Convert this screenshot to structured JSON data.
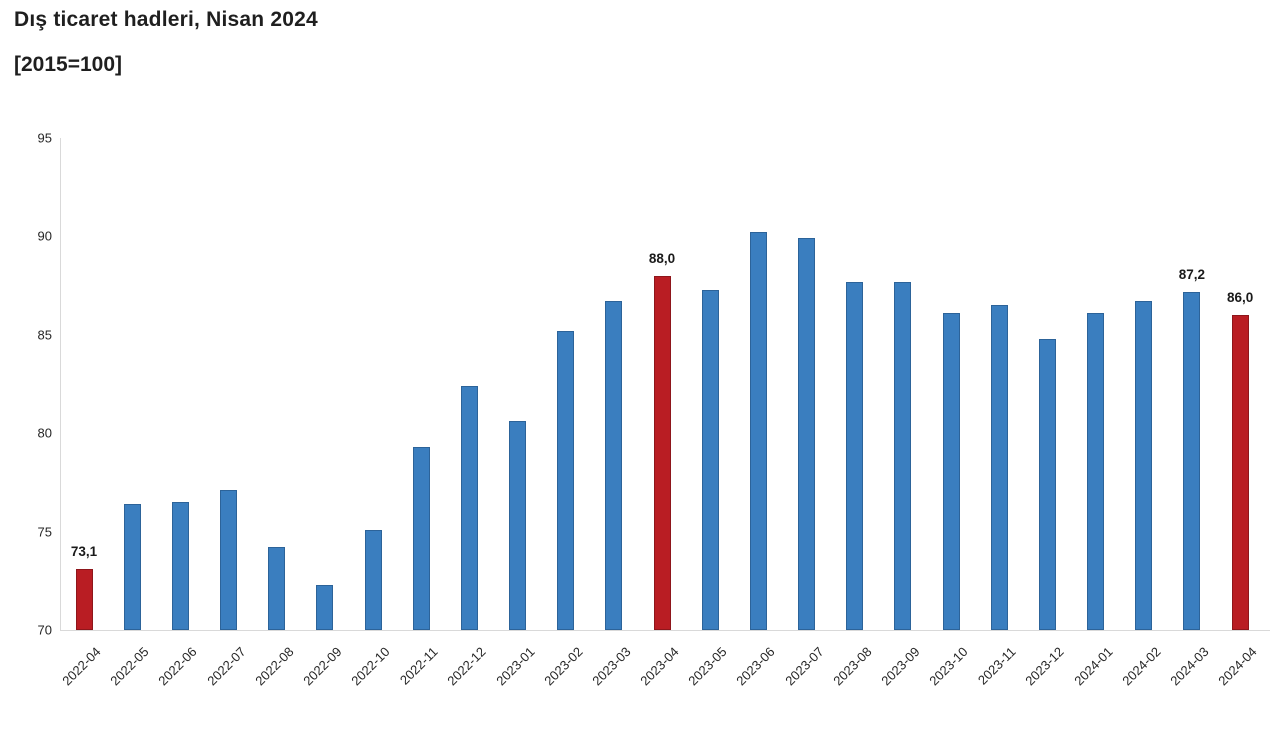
{
  "header": {
    "title": "Dış ticaret hadleri, Nisan 2024",
    "subtitle": "[2015=100]"
  },
  "colors": {
    "bar_default": "#3a7ebf",
    "bar_highlight": "#b91d23",
    "axis_line": "#d9d9d9",
    "text": "#262626"
  },
  "chart_data": {
    "type": "bar",
    "title": "Dış ticaret hadleri, Nisan 2024",
    "subtitle": "[2015=100]",
    "xlabel": "",
    "ylabel": "",
    "ylim": [
      70,
      95
    ],
    "yticks": [
      70,
      75,
      80,
      85,
      90,
      95
    ],
    "grid": false,
    "legend": false,
    "categories": [
      "2022-04",
      "2022-05",
      "2022-06",
      "2022-07",
      "2022-08",
      "2022-09",
      "2022-10",
      "2022-11",
      "2022-12",
      "2023-01",
      "2023-02",
      "2023-03",
      "2023-04",
      "2023-05",
      "2023-06",
      "2023-07",
      "2023-08",
      "2023-09",
      "2023-10",
      "2023-11",
      "2023-12",
      "2024-01",
      "2024-02",
      "2024-03",
      "2024-04"
    ],
    "values": [
      73.1,
      76.4,
      76.5,
      77.1,
      74.2,
      72.3,
      75.1,
      79.3,
      82.4,
      80.6,
      85.2,
      86.7,
      88.0,
      87.3,
      90.2,
      89.9,
      87.7,
      87.7,
      86.1,
      86.5,
      84.8,
      86.1,
      86.7,
      87.2,
      86.0
    ],
    "highlighted_indices": [
      0,
      12,
      24
    ],
    "data_labels": [
      {
        "index": 0,
        "text": "73,1"
      },
      {
        "index": 12,
        "text": "88,0"
      },
      {
        "index": 23,
        "text": "87,2"
      },
      {
        "index": 24,
        "text": "86,0"
      }
    ]
  }
}
